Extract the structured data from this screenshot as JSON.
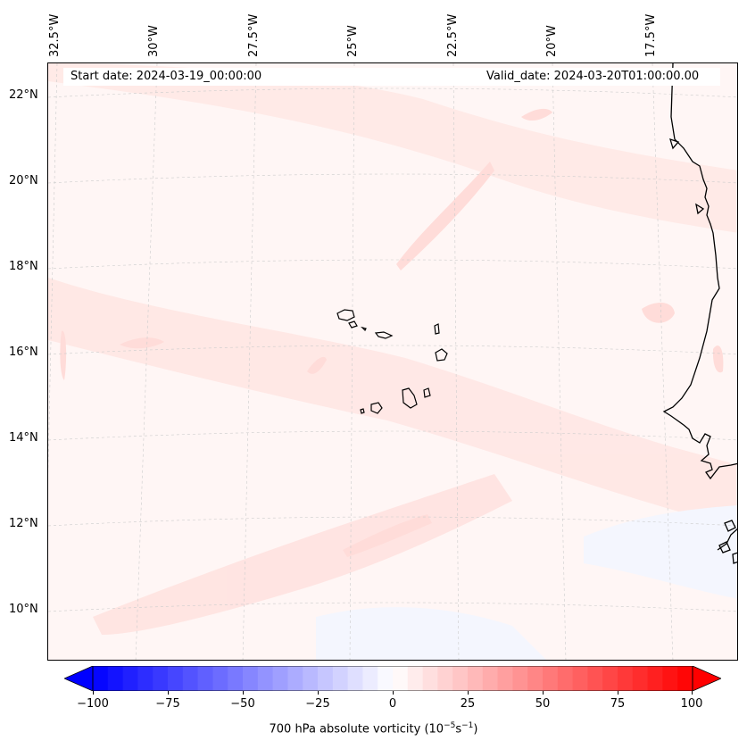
{
  "map": {
    "start_date": "Start date: 2024-03-19_00:00:00",
    "valid_date": "Valid_date: 2024-03-20T01:00:00.00",
    "lat_labels": [
      "22°N",
      "20°N",
      "18°N",
      "16°N",
      "14°N",
      "12°N",
      "10°N"
    ],
    "lon_labels": [
      "32.5°W",
      "30°W",
      "27.5°W",
      "25°W",
      "22.5°W",
      "20°W",
      "17.5°W"
    ],
    "colors": {
      "ocean_background": "#fff6f5",
      "light_red": "#ffe4e1",
      "light_blue": "#f3f6ff",
      "coastline": "#000000"
    }
  },
  "colorbar": {
    "ticks": [
      "−100",
      "−75",
      "−50",
      "−25",
      "0",
      "25",
      "50",
      "75",
      "100"
    ],
    "label_prefix": "700 hPa absolute vorticity (10",
    "label_exp1": "−5",
    "label_mid": "s",
    "label_exp2": "−1",
    "label_suffix": ")",
    "min": -100,
    "max": 100,
    "step": 5,
    "colors": {
      "neg": "#0000ff",
      "mid": "#ffffff",
      "pos": "#ff0000"
    }
  }
}
